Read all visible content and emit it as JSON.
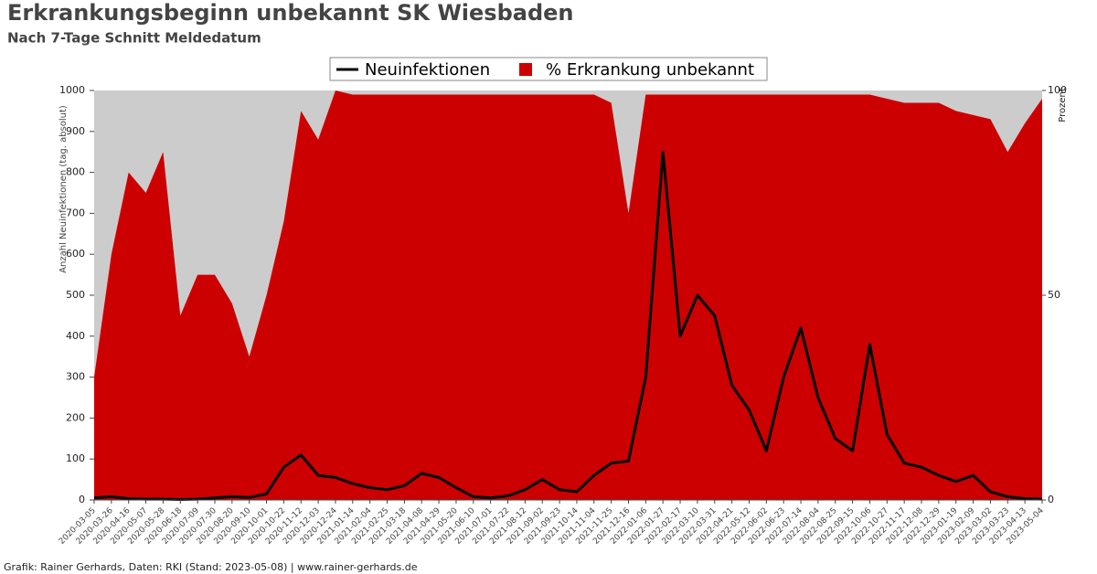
{
  "chart_data": {
    "type": "line",
    "title": "Erkrankungsbeginn unbekannt SK Wiesbaden",
    "subtitle": "Nach 7-Tage Schnitt Meldedatum",
    "ylabel": "Anzahl Neuinfektionen (tag. absolut)",
    "y2label": "Prozent",
    "footer": "Grafik: Rainer Gerhards, Daten: RKI (Stand: 2023-05-08) | www.rainer-gerhards.de",
    "x": [
      "2020-03-05",
      "2020-03-26",
      "2020-04-16",
      "2020-05-07",
      "2020-05-28",
      "2020-06-18",
      "2020-07-09",
      "2020-07-30",
      "2020-08-20",
      "2020-09-10",
      "2020-10-01",
      "2020-10-22",
      "2020-11-12",
      "2020-12-03",
      "2020-12-24",
      "2021-01-14",
      "2021-02-04",
      "2021-02-25",
      "2021-03-18",
      "2021-04-08",
      "2021-04-29",
      "2021-05-20",
      "2021-06-10",
      "2021-07-01",
      "2021-07-22",
      "2021-08-12",
      "2021-09-02",
      "2021-09-23",
      "2021-10-14",
      "2021-11-04",
      "2021-11-25",
      "2021-12-16",
      "2022-01-06",
      "2022-01-27",
      "2022-02-17",
      "2022-03-10",
      "2022-03-31",
      "2022-04-21",
      "2022-05-12",
      "2022-06-02",
      "2022-06-23",
      "2022-07-14",
      "2022-08-04",
      "2022-08-25",
      "2022-09-15",
      "2022-10-06",
      "2022-10-27",
      "2022-11-17",
      "2022-12-08",
      "2022-12-29",
      "2023-01-19",
      "2023-02-09",
      "2023-03-02",
      "2023-03-23",
      "2023-04-13",
      "2023-05-04"
    ],
    "series": [
      {
        "name": "% Erkrankung unbekannt",
        "type": "area",
        "axis": "y2",
        "color": "#cc0000",
        "values": [
          30,
          60,
          80,
          75,
          85,
          45,
          55,
          55,
          48,
          35,
          50,
          68,
          95,
          88,
          100,
          99,
          99,
          99,
          99,
          99,
          99,
          99,
          99,
          99,
          99,
          99,
          99,
          99,
          99,
          99,
          97,
          70,
          99,
          99,
          99,
          99,
          99,
          99,
          99,
          99,
          99,
          99,
          99,
          99,
          99,
          99,
          98,
          97,
          97,
          97,
          95,
          94,
          93,
          85,
          92,
          98
        ]
      },
      {
        "name": "Neuinfektionen",
        "type": "line",
        "color": "#000000",
        "values": [
          5,
          8,
          3,
          2,
          2,
          1,
          2,
          5,
          8,
          6,
          15,
          80,
          110,
          60,
          55,
          40,
          30,
          25,
          35,
          65,
          55,
          30,
          8,
          5,
          10,
          25,
          50,
          25,
          20,
          60,
          90,
          95,
          300,
          850,
          400,
          500,
          450,
          280,
          220,
          120,
          300,
          420,
          250,
          150,
          120,
          380,
          160,
          90,
          80,
          60,
          45,
          60,
          20,
          8,
          3,
          2
        ]
      }
    ],
    "ylim": [
      0,
      1000
    ],
    "yticks": [
      0,
      100,
      200,
      300,
      400,
      500,
      600,
      700,
      800,
      900,
      1000
    ],
    "y2lim": [
      0,
      100
    ],
    "y2ticks": [
      0,
      50,
      100
    ],
    "background": "#cccccc",
    "legend": "top"
  }
}
